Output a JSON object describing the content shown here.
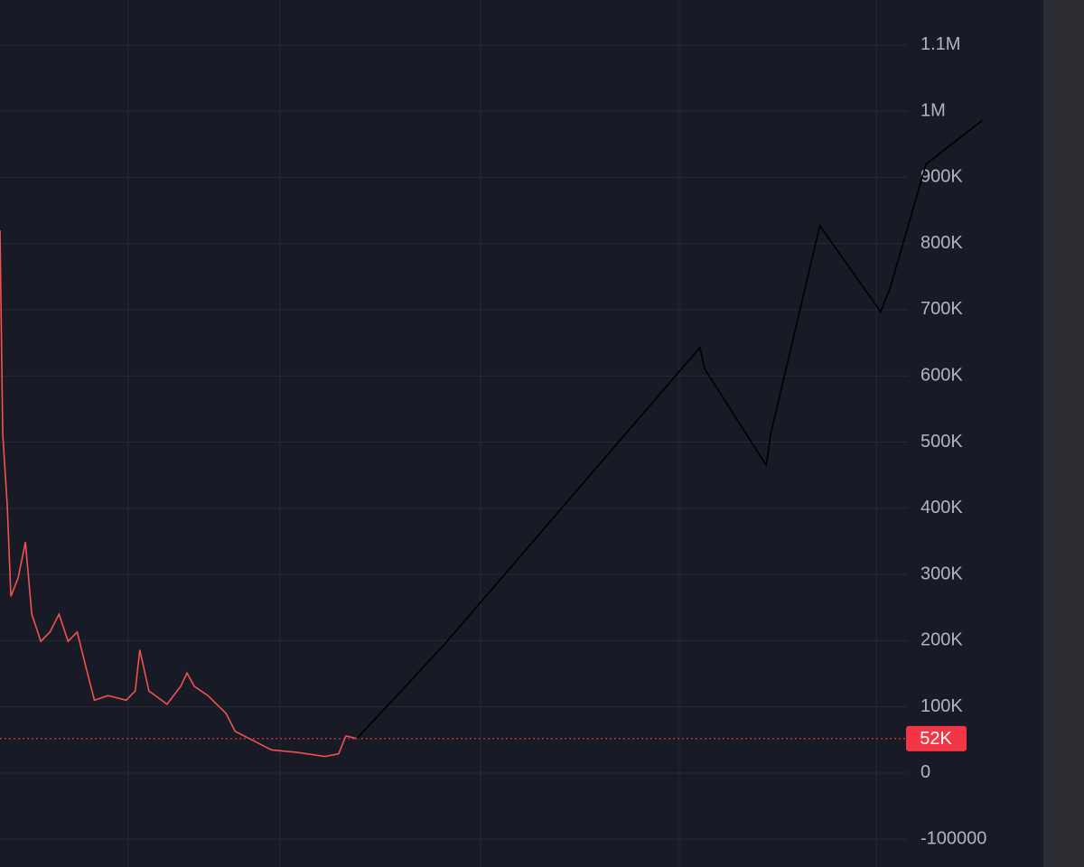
{
  "chart_data": {
    "type": "line",
    "xlim": [
      0,
      119.4
    ],
    "ylim": [
      -142000,
      1168000
    ],
    "yticks": [
      -100000,
      0,
      {
        "value": 100000,
        "label": "100K"
      },
      {
        "value": 200000,
        "label": "200K"
      },
      {
        "value": 300000,
        "label": "300K"
      },
      {
        "value": 400000,
        "label": "400K"
      },
      {
        "value": 500000,
        "label": "500K"
      },
      {
        "value": 600000,
        "label": "600K"
      },
      {
        "value": 700000,
        "label": "700K"
      },
      {
        "value": 800000,
        "label": "800K"
      },
      {
        "value": 900000,
        "label": "900K"
      },
      {
        "value": 1000000,
        "label": "1M"
      },
      {
        "value": 1100000,
        "label": "1.1M"
      }
    ],
    "grid": true,
    "series": [
      {
        "color": "#ef5350",
        "x": [
          0,
          0.3,
          0.8,
          1.2,
          2,
          2.8,
          3.5,
          4.5,
          5.5,
          6.5,
          7.5,
          8.5,
          9.5,
          10.4,
          11.9,
          13.9,
          14.9,
          15.4,
          16.4,
          18.4,
          19.9,
          20.6,
          21.4,
          22.9,
          24.9,
          25.9,
          27.9,
          29.9,
          32.8,
          35.8,
          37.3,
          38.1,
          39.3
        ],
        "values": [
          820000,
          513000,
          404000,
          267000,
          295000,
          349000,
          240000,
          199000,
          213000,
          240000,
          199000,
          213000,
          158000,
          110000,
          117000,
          110000,
          124000,
          186000,
          124000,
          104000,
          131000,
          151000,
          131000,
          117000,
          90000,
          63000,
          49000,
          35000,
          31000,
          25000,
          29000,
          56000,
          52000
        ]
      },
      {
        "color": "#000000",
        "x": [
          39.3,
          48.8,
          77.1,
          77.6,
          84.4,
          84.9,
          90.3,
          97.0,
          98.0,
          102.0,
          103.5,
          108.2
        ],
        "values": [
          52000,
          192000,
          643000,
          611000,
          465000,
          513000,
          827000,
          697000,
          731000,
          920000,
          936000,
          986000
        ]
      }
    ],
    "price_line": {
      "value": 52000,
      "label": "52K",
      "color": "#f23645"
    }
  }
}
